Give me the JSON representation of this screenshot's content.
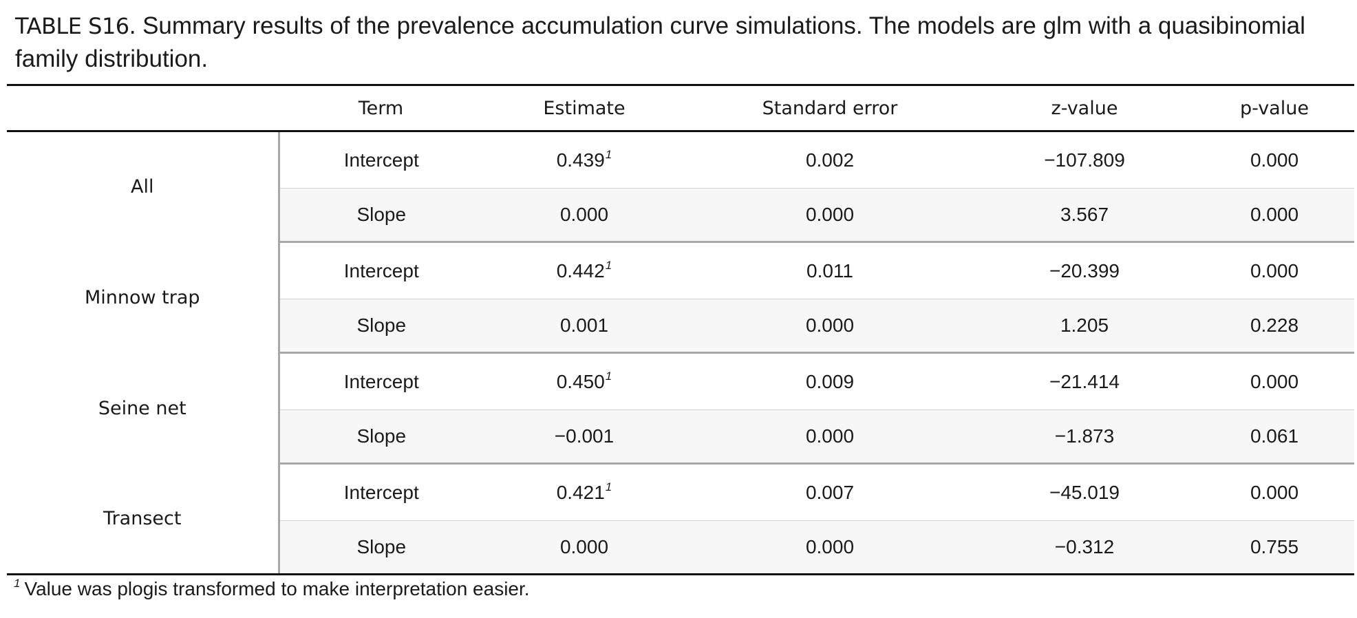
{
  "caption": {
    "label": "TABLE S16.",
    "text": "Summary results of the prevalence accumulation curve simulations. The models are glm with a quasibinomial family distribution."
  },
  "headers": {
    "group": "",
    "term": "Term",
    "estimate": "Estimate",
    "std_error": "Standard error",
    "z_value": "z-value",
    "p_value": "p-value"
  },
  "groups": [
    {
      "name": "All",
      "rows": [
        {
          "term": "Intercept",
          "estimate": "0.439",
          "marker": "1",
          "std_error": "0.002",
          "z_value": "−107.809",
          "p_value": "0.000"
        },
        {
          "term": "Slope",
          "estimate": "0.000",
          "marker": "",
          "std_error": "0.000",
          "z_value": "3.567",
          "p_value": "0.000"
        }
      ]
    },
    {
      "name": "Minnow trap",
      "rows": [
        {
          "term": "Intercept",
          "estimate": "0.442",
          "marker": "1",
          "std_error": "0.011",
          "z_value": "−20.399",
          "p_value": "0.000"
        },
        {
          "term": "Slope",
          "estimate": "0.001",
          "marker": "",
          "std_error": "0.000",
          "z_value": "1.205",
          "p_value": "0.228"
        }
      ]
    },
    {
      "name": "Seine net",
      "rows": [
        {
          "term": "Intercept",
          "estimate": "0.450",
          "marker": "1",
          "std_error": "0.009",
          "z_value": "−21.414",
          "p_value": "0.000"
        },
        {
          "term": "Slope",
          "estimate": "−0.001",
          "marker": "",
          "std_error": "0.000",
          "z_value": "−1.873",
          "p_value": "0.061"
        }
      ]
    },
    {
      "name": "Transect",
      "rows": [
        {
          "term": "Intercept",
          "estimate": "0.421",
          "marker": "1",
          "std_error": "0.007",
          "z_value": "−45.019",
          "p_value": "0.000"
        },
        {
          "term": "Slope",
          "estimate": "0.000",
          "marker": "",
          "std_error": "0.000",
          "z_value": "−0.312",
          "p_value": "0.755"
        }
      ]
    }
  ],
  "footnote": {
    "marker": "1",
    "text": "Value was plogis transformed to make interpretation easier."
  }
}
